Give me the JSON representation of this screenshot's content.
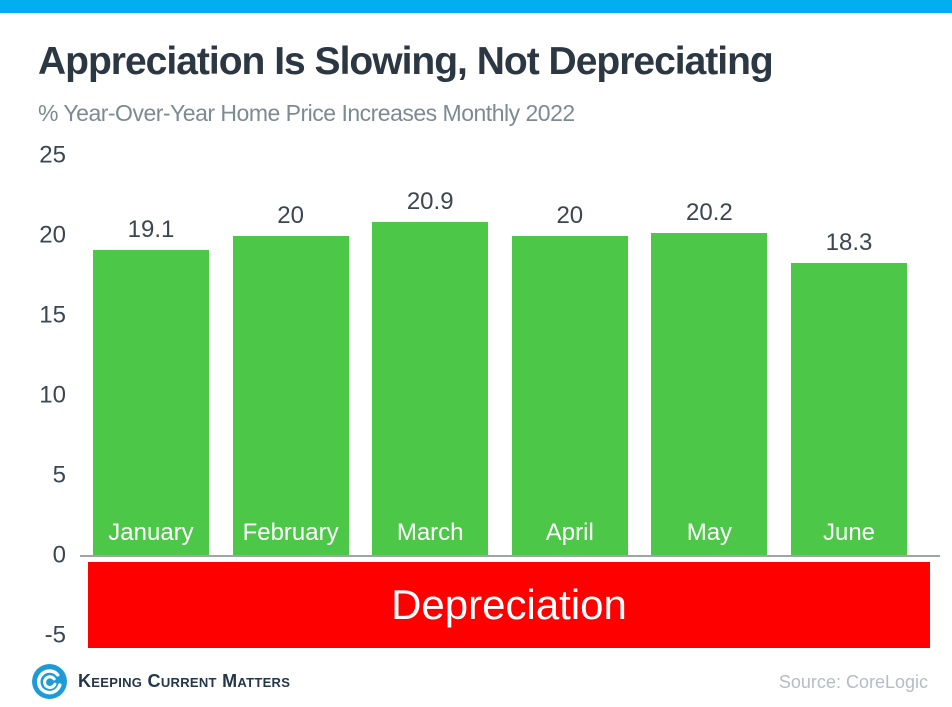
{
  "page": {
    "accent_bar_color": "#00ADEF"
  },
  "chart_data": {
    "type": "bar",
    "title": "Appreciation Is Slowing, Not Depreciating",
    "subtitle": "% Year-Over-Year Home Price Increases Monthly 2022",
    "categories": [
      "January",
      "February",
      "March",
      "April",
      "May",
      "June"
    ],
    "values": [
      19.1,
      20,
      20.9,
      20,
      20.2,
      18.3
    ],
    "value_labels": [
      "19.1",
      "20",
      "20.9",
      "20",
      "20.2",
      "18.3"
    ],
    "xlabel": "",
    "ylabel": "",
    "ylim": [
      -5,
      25
    ],
    "yticks": [
      25,
      20,
      15,
      10,
      5,
      0,
      -5
    ],
    "grid": false,
    "legend": false,
    "bar_color": "#4DC747",
    "bar_label_color": "#3A4650",
    "month_label_color": "#FFFFFF",
    "axis_color": "#9EA4A9",
    "annotation": {
      "label": "Depreciation",
      "band_color": "#FF0000",
      "text_color": "#FFFFFF",
      "spans_y": "0 to -5"
    }
  },
  "footer": {
    "brand": "Keeping Current Matters",
    "source": "Source: CoreLogic",
    "logo_color": "#1E9BD7"
  }
}
